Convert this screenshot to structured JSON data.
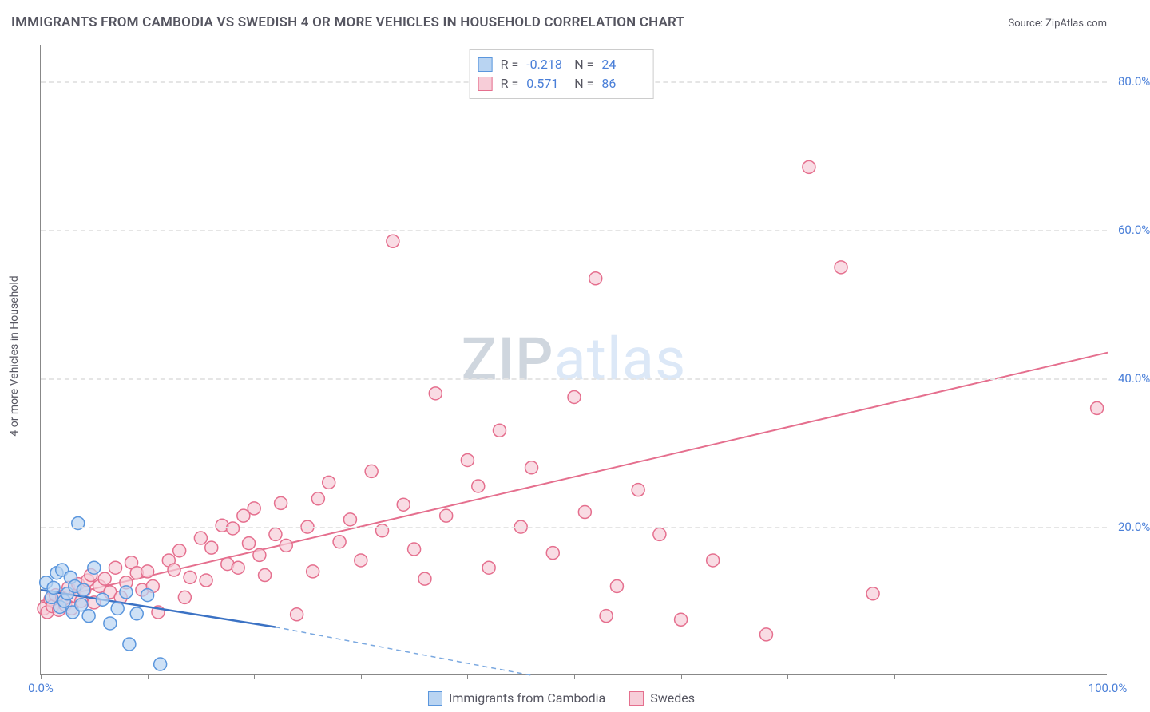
{
  "title": "IMMIGRANTS FROM CAMBODIA VS SWEDISH 4 OR MORE VEHICLES IN HOUSEHOLD CORRELATION CHART",
  "source": "Source: ZipAtlas.com",
  "ylabel": "4 or more Vehicles in Household",
  "watermark_1": "ZIP",
  "watermark_2": "atlas",
  "chart": {
    "type": "scatter",
    "xlim": [
      0,
      100
    ],
    "ylim": [
      0,
      85
    ],
    "xtick_positions": [
      0,
      10,
      20,
      30,
      40,
      50,
      60,
      70,
      80,
      90,
      100
    ],
    "xtick_labels": {
      "0": "0.0%",
      "100": "100.0%"
    },
    "ytick_positions": [
      20,
      40,
      60,
      80
    ],
    "ytick_labels": [
      "20.0%",
      "40.0%",
      "60.0%",
      "80.0%"
    ],
    "grid_color": "#e5e5e5",
    "background_color": "#ffffff",
    "axis_color": "#888888",
    "tick_label_color": "#4a7fd8",
    "marker_radius": 8,
    "marker_stroke_width": 1.5,
    "series": [
      {
        "name": "Immigrants from Cambodia",
        "color_fill": "#b9d4f2",
        "color_stroke": "#5a96dd",
        "R": "-0.218",
        "N": "24",
        "points": [
          [
            0.5,
            12.5
          ],
          [
            1,
            10.5
          ],
          [
            1.2,
            11.8
          ],
          [
            1.5,
            13.8
          ],
          [
            1.8,
            9.2
          ],
          [
            2,
            14.2
          ],
          [
            2.2,
            10
          ],
          [
            2.5,
            11
          ],
          [
            2.8,
            13.2
          ],
          [
            3,
            8.5
          ],
          [
            3.2,
            12
          ],
          [
            3.5,
            20.5
          ],
          [
            3.8,
            9.5
          ],
          [
            4,
            11.5
          ],
          [
            4.5,
            8
          ],
          [
            5,
            14.5
          ],
          [
            5.8,
            10.2
          ],
          [
            6.5,
            7
          ],
          [
            7.2,
            9
          ],
          [
            8,
            11.2
          ],
          [
            8.3,
            4.2
          ],
          [
            9,
            8.3
          ],
          [
            10,
            10.8
          ],
          [
            11.2,
            1.5
          ]
        ],
        "trend": {
          "x1": 0,
          "y1": 11.5,
          "x2": 22,
          "y2": 6.5,
          "style": "solid",
          "width": 2.5,
          "color": "#3b72c4"
        },
        "trend_ext": {
          "x1": 22,
          "y1": 6.5,
          "x2": 46,
          "y2": 0,
          "style": "dashed",
          "width": 1.5,
          "color": "#7aa8e0"
        }
      },
      {
        "name": "Swedes",
        "color_fill": "#f7cdd8",
        "color_stroke": "#e56f8e",
        "R": "0.571",
        "N": "86",
        "points": [
          [
            0.3,
            9
          ],
          [
            0.6,
            8.5
          ],
          [
            0.9,
            10.2
          ],
          [
            1.1,
            9.3
          ],
          [
            1.4,
            10.8
          ],
          [
            1.7,
            8.8
          ],
          [
            2,
            10.5
          ],
          [
            2.3,
            9.5
          ],
          [
            2.6,
            11.8
          ],
          [
            2.9,
            9
          ],
          [
            3.2,
            10.7
          ],
          [
            3.5,
            12.3
          ],
          [
            3.8,
            10
          ],
          [
            4.1,
            11.5
          ],
          [
            4.4,
            12.8
          ],
          [
            4.7,
            13.5
          ],
          [
            5,
            9.8
          ],
          [
            5.5,
            12
          ],
          [
            6,
            13
          ],
          [
            6.5,
            11.2
          ],
          [
            7,
            14.5
          ],
          [
            7.5,
            10.5
          ],
          [
            8,
            12.5
          ],
          [
            8.5,
            15.2
          ],
          [
            9,
            13.8
          ],
          [
            9.5,
            11.5
          ],
          [
            10,
            14
          ],
          [
            10.5,
            12
          ],
          [
            11,
            8.5
          ],
          [
            12,
            15.5
          ],
          [
            12.5,
            14.2
          ],
          [
            13,
            16.8
          ],
          [
            13.5,
            10.5
          ],
          [
            14,
            13.2
          ],
          [
            15,
            18.5
          ],
          [
            15.5,
            12.8
          ],
          [
            16,
            17.2
          ],
          [
            17,
            20.2
          ],
          [
            17.5,
            15
          ],
          [
            18,
            19.8
          ],
          [
            18.5,
            14.5
          ],
          [
            19,
            21.5
          ],
          [
            19.5,
            17.8
          ],
          [
            20,
            22.5
          ],
          [
            20.5,
            16.2
          ],
          [
            21,
            13.5
          ],
          [
            22,
            19
          ],
          [
            22.5,
            23.2
          ],
          [
            23,
            17.5
          ],
          [
            24,
            8.2
          ],
          [
            25,
            20
          ],
          [
            25.5,
            14
          ],
          [
            26,
            23.8
          ],
          [
            27,
            26
          ],
          [
            28,
            18
          ],
          [
            29,
            21
          ],
          [
            30,
            15.5
          ],
          [
            31,
            27.5
          ],
          [
            32,
            19.5
          ],
          [
            33,
            58.5
          ],
          [
            34,
            23
          ],
          [
            35,
            17
          ],
          [
            36,
            13
          ],
          [
            37,
            38
          ],
          [
            38,
            21.5
          ],
          [
            40,
            29
          ],
          [
            41,
            25.5
          ],
          [
            42,
            14.5
          ],
          [
            43,
            33
          ],
          [
            45,
            20
          ],
          [
            46,
            28
          ],
          [
            48,
            16.5
          ],
          [
            50,
            37.5
          ],
          [
            51,
            22
          ],
          [
            52,
            53.5
          ],
          [
            53,
            8
          ],
          [
            54,
            12
          ],
          [
            56,
            25
          ],
          [
            58,
            19
          ],
          [
            60,
            7.5
          ],
          [
            63,
            15.5
          ],
          [
            68,
            5.5
          ],
          [
            72,
            68.5
          ],
          [
            75,
            55
          ],
          [
            78,
            11
          ],
          [
            99,
            36
          ]
        ],
        "trend": {
          "x1": 0,
          "y1": 10,
          "x2": 100,
          "y2": 43.5,
          "style": "solid",
          "width": 2,
          "color": "#e56f8e"
        }
      }
    ]
  },
  "legend_stats_rows": [
    {
      "swatch_fill": "#b9d4f2",
      "swatch_stroke": "#5a96dd",
      "R": "-0.218",
      "N": "24"
    },
    {
      "swatch_fill": "#f7cdd8",
      "swatch_stroke": "#e56f8e",
      "R": "0.571",
      "N": "86"
    }
  ],
  "bottom_legend": [
    {
      "swatch_fill": "#b9d4f2",
      "swatch_stroke": "#5a96dd",
      "label": "Immigrants from Cambodia"
    },
    {
      "swatch_fill": "#f7cdd8",
      "swatch_stroke": "#e56f8e",
      "label": "Swedes"
    }
  ]
}
